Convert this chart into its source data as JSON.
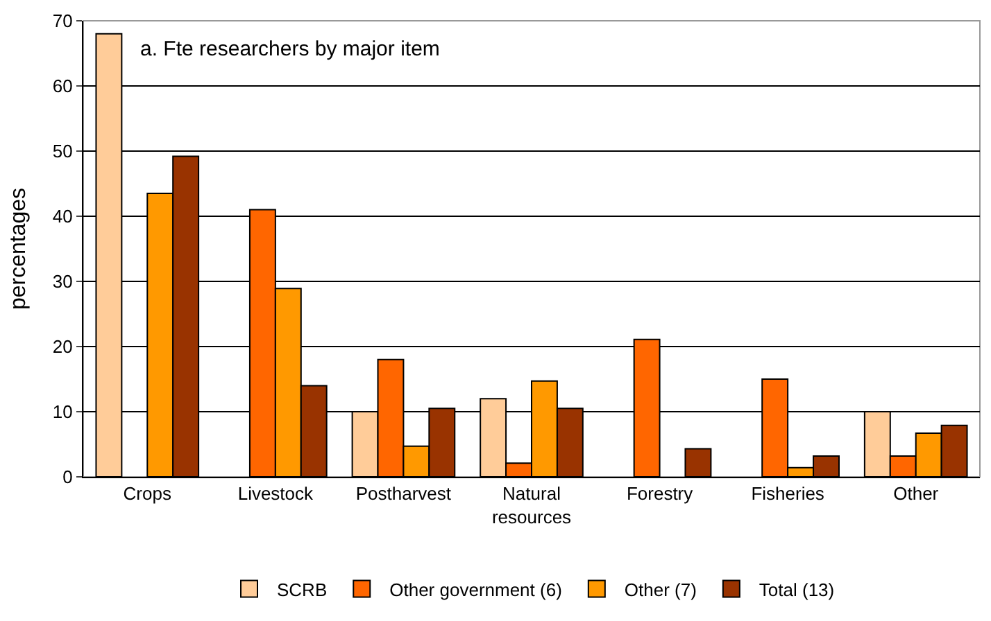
{
  "chart_data": {
    "type": "bar",
    "title": "a. Fte researchers by major item",
    "ylabel": "percentages",
    "categories": [
      "Crops",
      "Livestock",
      "Postharvest",
      "Natural resources",
      "Forestry",
      "Fisheries",
      "Other"
    ],
    "series": [
      {
        "name": "SCRB",
        "color": "#ffcc99",
        "values": [
          68,
          null,
          10,
          12,
          null,
          null,
          10
        ]
      },
      {
        "name": "Other government (6)",
        "color": "#ff6600",
        "values": [
          null,
          41,
          18,
          2.1,
          21.1,
          15,
          3.2
        ]
      },
      {
        "name": "Other (7)",
        "color": "#ff9900",
        "values": [
          43.5,
          28.9,
          4.7,
          14.7,
          null,
          1.4,
          6.7
        ]
      },
      {
        "name": "Total (13)",
        "color": "#993300",
        "values": [
          49.2,
          14,
          10.5,
          10.5,
          4.3,
          3.2,
          7.9
        ]
      }
    ],
    "ylim": [
      0,
      70
    ],
    "yticks": [
      0,
      10,
      20,
      30,
      40,
      50,
      60,
      70
    ],
    "grid": "y",
    "legend": "bottom"
  }
}
